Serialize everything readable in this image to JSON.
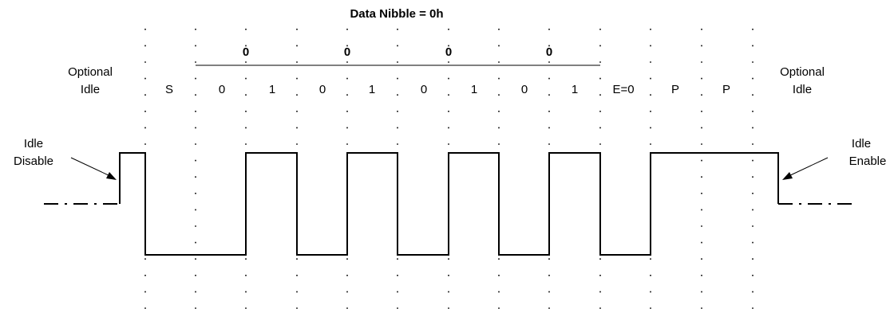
{
  "title": "Data Nibble = 0h",
  "nibble_values": [
    "0",
    "0",
    "0",
    "0"
  ],
  "slot_labels": [
    "S",
    "0",
    "1",
    "0",
    "1",
    "0",
    "1",
    "0",
    "1",
    "E=0",
    "P",
    "P"
  ],
  "left_idle": {
    "line1": "Optional",
    "line2": "Idle"
  },
  "right_idle": {
    "line1": "Optional",
    "line2": "Idle"
  },
  "idle_disable": {
    "line1": "Idle",
    "line2": "Disable"
  },
  "idle_enable": {
    "line1": "Idle",
    "line2": "Enable"
  },
  "signal": {
    "levels": [
      1,
      0,
      0,
      1,
      0,
      1,
      0,
      1,
      0,
      1,
      0,
      1,
      1,
      1
    ]
  }
}
